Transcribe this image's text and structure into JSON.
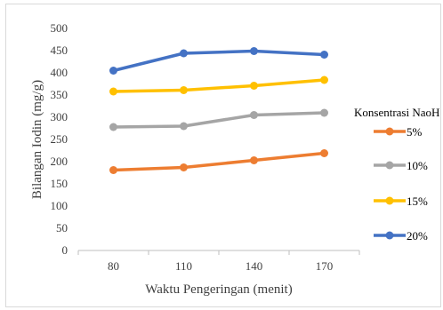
{
  "chart_data": {
    "type": "line",
    "title": "",
    "xlabel": "Waktu Pengeringan (menit)",
    "ylabel": "Bilangan Iodin (mg/g)",
    "categories": [
      "80",
      "110",
      "140",
      "170"
    ],
    "ylim": [
      0,
      500
    ],
    "yticks": [
      0,
      50,
      100,
      150,
      200,
      250,
      300,
      350,
      400,
      450,
      500
    ],
    "grid": false,
    "legend_title": "Konsentrasi NaoH",
    "legend_position": "right",
    "series": [
      {
        "name": "5%",
        "color": "#ED7D31",
        "values": [
          181,
          187,
          203,
          219
        ]
      },
      {
        "name": "10%",
        "color": "#A5A5A5",
        "values": [
          278,
          280,
          305,
          310
        ]
      },
      {
        "name": "15%",
        "color": "#FFC000",
        "values": [
          358,
          361,
          371,
          384
        ]
      },
      {
        "name": "20%",
        "color": "#4472C4",
        "values": [
          405,
          444,
          449,
          441
        ]
      }
    ]
  }
}
